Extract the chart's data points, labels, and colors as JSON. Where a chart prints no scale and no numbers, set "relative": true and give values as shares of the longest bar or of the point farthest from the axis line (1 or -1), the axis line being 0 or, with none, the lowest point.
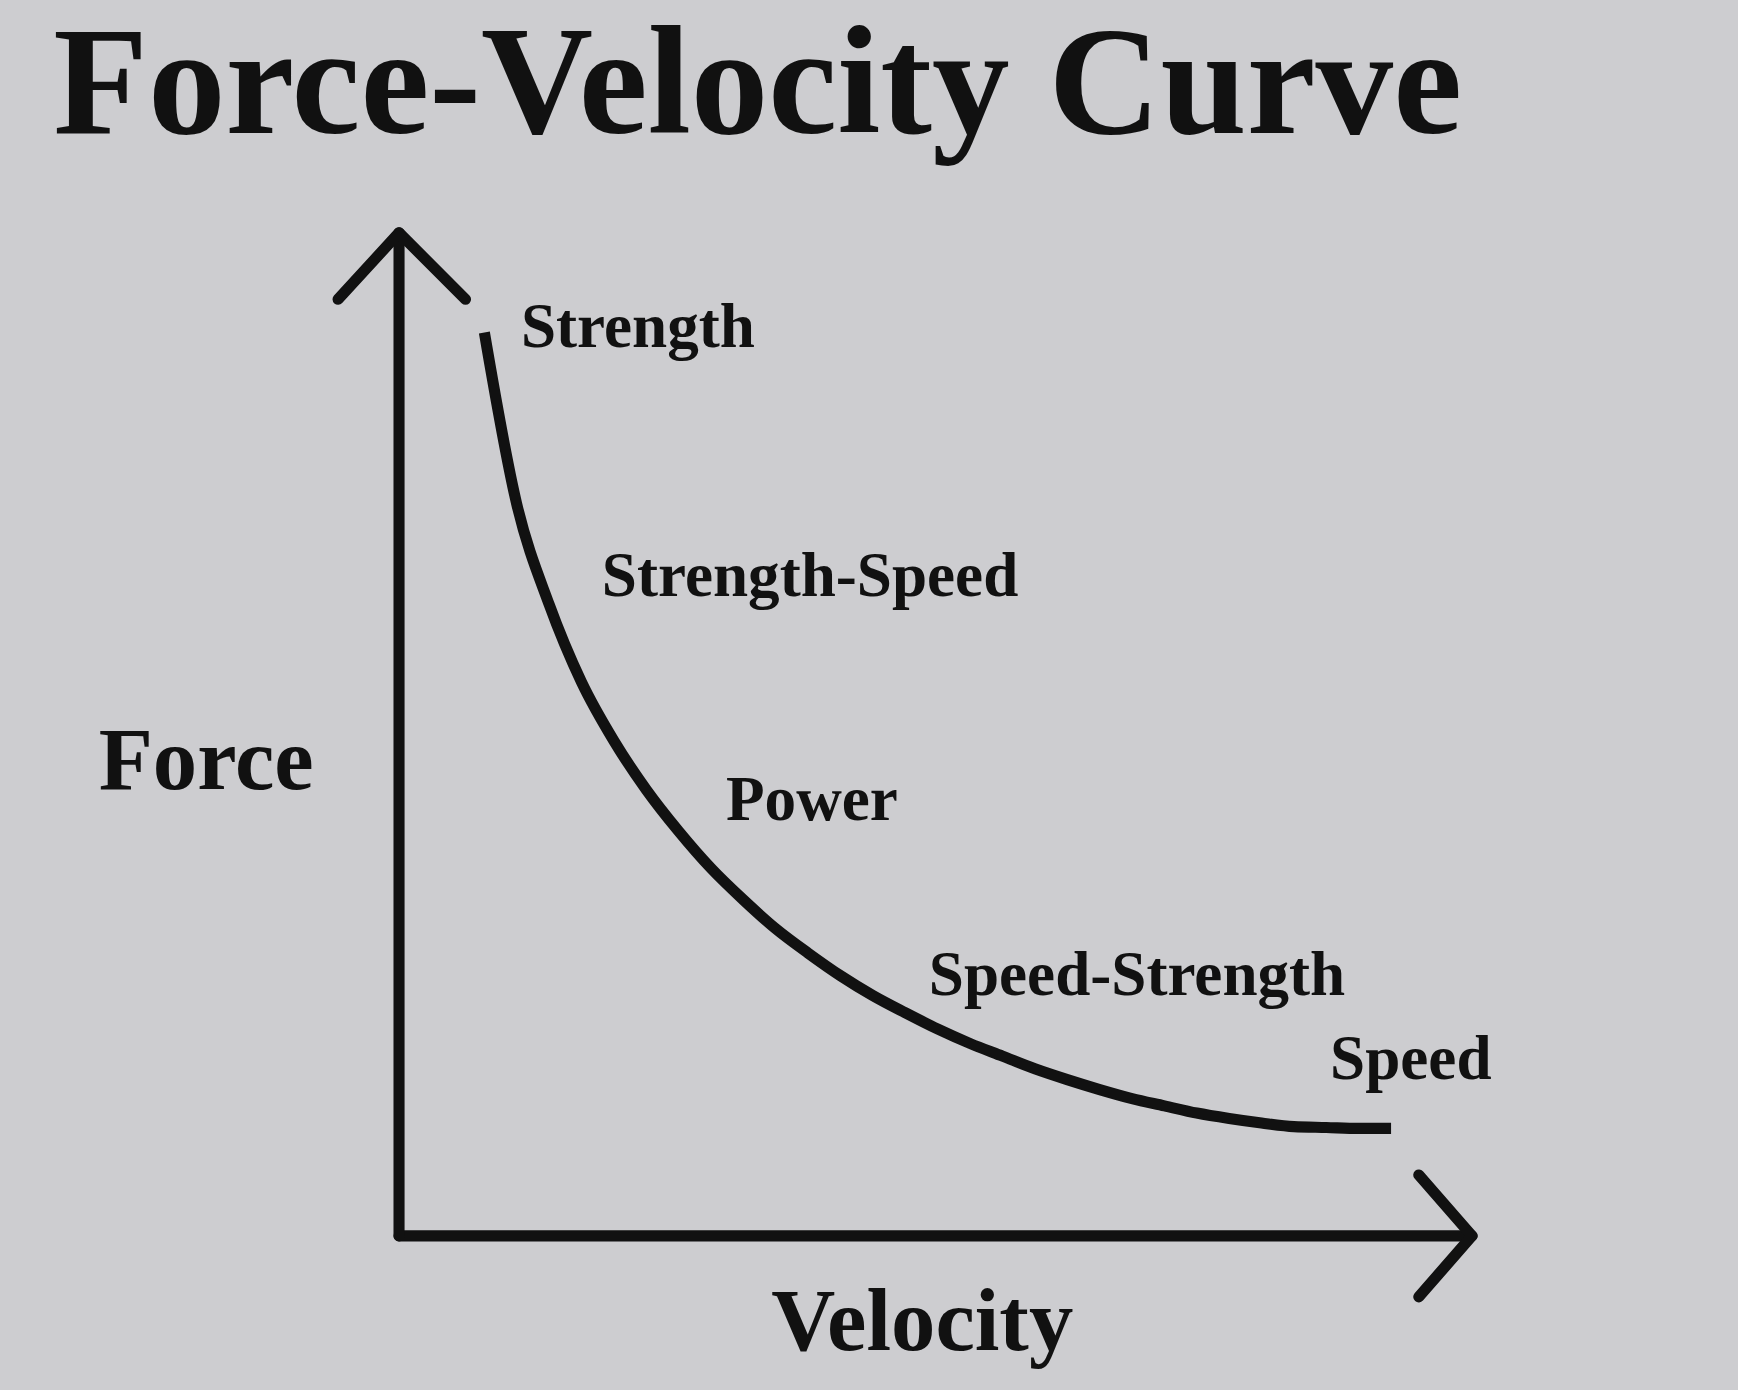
{
  "chart_data": {
    "type": "line",
    "title": "Force-Velocity Curve",
    "xlabel": "Velocity",
    "ylabel": "Force",
    "relative": true,
    "categories": [
      null,
      null,
      null,
      null,
      null,
      null,
      null,
      null,
      null,
      null,
      null,
      null,
      null,
      null,
      null,
      null,
      null,
      null,
      null,
      null,
      null,
      null,
      null,
      null,
      null,
      null,
      null,
      null,
      null
    ],
    "series": [
      {
        "color": "#111111",
        "values": [
          1,
          0.81,
          0.699,
          0.613,
          0.548,
          0.494,
          0.448,
          0.407,
          0.372,
          0.34,
          0.313,
          0.288,
          0.266,
          0.247,
          0.229,
          0.213,
          0.199,
          0.185,
          0.173,
          0.162,
          0.152,
          0.144,
          0.136,
          0.13,
          0.125,
          0.121,
          0.12,
          0.119,
          0.119
        ]
      }
    ],
    "annotations": [
      "Strength",
      "Strength-Speed",
      "Power",
      "Speed-Strength",
      "Speed"
    ],
    "marker": "none",
    "line_style": "solid"
  }
}
